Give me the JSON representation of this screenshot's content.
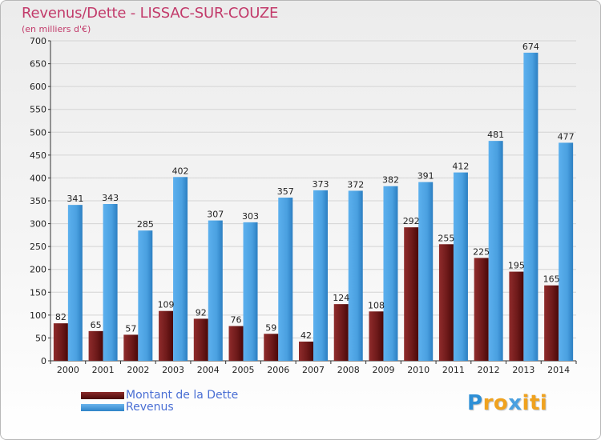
{
  "header": {
    "title": "Revenus/Dette - LISSAC-SUR-COUZE",
    "subtitle": "(en milliers d'€)"
  },
  "legend": {
    "items": [
      {
        "label": "Montant de la Dette",
        "color": "#6e1a1a"
      },
      {
        "label": "Revenus",
        "color": "#4aa0e0"
      }
    ]
  },
  "logo": {
    "text": "Proxiti",
    "letter_colors": [
      "#2d8fd6",
      "#f0a21e",
      "#f0a21e",
      "#4aa0e0",
      "#f0a21e",
      "#f0a21e",
      "#f0a21e"
    ]
  },
  "colors": {
    "dette": "#6e1a1a",
    "revenus": "#4aa0e0",
    "axis_text": "#222222",
    "title": "#c23a6a"
  },
  "chart_data": {
    "type": "bar",
    "categories": [
      "2000",
      "2001",
      "2002",
      "2003",
      "2004",
      "2005",
      "2006",
      "2007",
      "2008",
      "2009",
      "2010",
      "2011",
      "2012",
      "2013",
      "2014"
    ],
    "series": [
      {
        "name": "Montant de la Dette",
        "values": [
          82,
          65,
          57,
          109,
          92,
          76,
          59,
          42,
          124,
          108,
          292,
          255,
          225,
          195,
          165
        ]
      },
      {
        "name": "Revenus",
        "values": [
          341,
          343,
          285,
          402,
          307,
          303,
          357,
          373,
          372,
          382,
          391,
          412,
          481,
          674,
          477
        ]
      }
    ],
    "title": "Revenus/Dette - LISSAC-SUR-COUZE",
    "ylabel": "(en milliers d'€)",
    "ylim": [
      0,
      700
    ],
    "yticks": [
      0,
      50,
      100,
      150,
      200,
      250,
      300,
      350,
      400,
      450,
      500,
      550,
      600,
      650,
      700
    ],
    "grid": true,
    "legend_position": "bottom-left"
  }
}
